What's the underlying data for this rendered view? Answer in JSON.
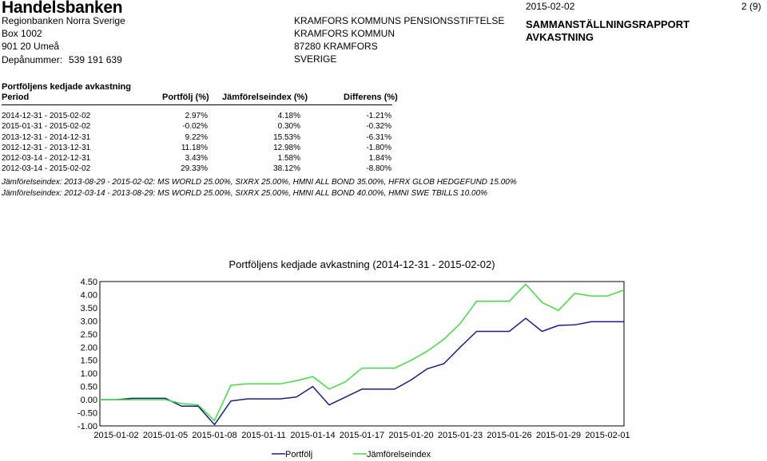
{
  "header": {
    "brand": "Handelsbanken",
    "sender_lines": [
      "Regionbanken Norra Sverige",
      "Box 1002",
      "901 20 Umeå"
    ],
    "depot_label": "Depånummer:",
    "depot_number": "539 191 639",
    "recipient_lines": [
      "KRAMFORS KOMMUNS PENSIONSSTIFTELSE",
      "KRAMFORS KOMMUN",
      "87280 KRAMFORS",
      "SVERIGE"
    ],
    "date": "2015-02-02",
    "page": "2 (9)",
    "report_title_1": "SAMMANSTÄLLNINGSRAPPORT",
    "report_title_2": "AVKASTNING"
  },
  "table": {
    "title": "Portföljens kedjade avkastning",
    "columns": [
      "Period",
      "Portfölj (%)",
      "Jämförelseindex (%)",
      "Differens (%)"
    ],
    "rows": [
      [
        "2014-12-31 - 2015-02-02",
        "2.97%",
        "4.18%",
        "-1.21%"
      ],
      [
        "2015-01-31 - 2015-02-02",
        "-0.02%",
        "0.30%",
        "-0.32%"
      ],
      [
        "2013-12-31 - 2014-12-31",
        "9.22%",
        "15.53%",
        "-6.31%"
      ],
      [
        "2012-12-31 - 2013-12-31",
        "11.18%",
        "12.98%",
        "-1.80%"
      ],
      [
        "2012-03-14 - 2012-12-31",
        "3.43%",
        "1.58%",
        "1.84%"
      ],
      [
        "2012-03-14 - 2015-02-02",
        "29.33%",
        "38.12%",
        "-8.80%"
      ]
    ]
  },
  "notes": [
    "Jämförelseindex: 2013-08-29 - 2015-02-02: MS WORLD 25.00%, SIXRX 25.00%, HMNI ALL BOND 35.00%, HFRX GLOB HEDGEFUND 15.00%",
    "Jämförelseindex: 2012-03-14 - 2013-08-29: MS WORLD 25.00%, SIXRX 25.00%, HMNI ALL BOND 40.00%, HMNI SWE TBILLS 10.00%"
  ],
  "chart_data": {
    "type": "line",
    "title": "Portföljens kedjade avkastning (2014-12-31 - 2015-02-02)",
    "ylim": [
      -1.0,
      4.5
    ],
    "yticks": [
      "4.50",
      "4.00",
      "3.50",
      "3.00",
      "2.50",
      "2.00",
      "1.50",
      "1.00",
      "0.50",
      "0.00",
      "-0.50",
      "-1.00"
    ],
    "x_tick_labels": [
      "2015-01-02",
      "2015-01-05",
      "2015-01-08",
      "2015-01-11",
      "2015-01-14",
      "2015-01-17",
      "2015-01-20",
      "2015-01-23",
      "2015-01-26",
      "2015-01-29",
      "2015-02-01"
    ],
    "x": [
      "2015-01-01",
      "2015-01-02",
      "2015-01-03",
      "2015-01-04",
      "2015-01-05",
      "2015-01-06",
      "2015-01-07",
      "2015-01-08",
      "2015-01-09",
      "2015-01-10",
      "2015-01-11",
      "2015-01-12",
      "2015-01-13",
      "2015-01-14",
      "2015-01-15",
      "2015-01-16",
      "2015-01-17",
      "2015-01-18",
      "2015-01-19",
      "2015-01-20",
      "2015-01-21",
      "2015-01-22",
      "2015-01-23",
      "2015-01-24",
      "2015-01-25",
      "2015-01-26",
      "2015-01-27",
      "2015-01-28",
      "2015-01-29",
      "2015-01-30",
      "2015-01-31",
      "2015-02-01",
      "2015-02-02"
    ],
    "series": [
      {
        "name": "Portfölj",
        "color": "#1c1c8c",
        "values": [
          0.0,
          0.0,
          0.05,
          0.05,
          0.05,
          -0.25,
          -0.25,
          -0.95,
          -0.05,
          0.03,
          0.03,
          0.03,
          0.1,
          0.5,
          -0.2,
          0.1,
          0.4,
          0.4,
          0.4,
          0.75,
          1.18,
          1.37,
          2.0,
          2.6,
          2.6,
          2.6,
          3.1,
          2.6,
          2.83,
          2.85,
          2.97,
          2.97,
          2.97
        ]
      },
      {
        "name": "Jämförelseindex",
        "color": "#3ee03e",
        "values": [
          0.0,
          0.0,
          0.0,
          0.0,
          0.0,
          -0.15,
          -0.2,
          -0.8,
          0.55,
          0.6,
          0.6,
          0.6,
          0.72,
          0.88,
          0.4,
          0.68,
          1.2,
          1.2,
          1.2,
          1.5,
          1.85,
          2.3,
          2.9,
          3.75,
          3.75,
          3.75,
          4.4,
          3.7,
          3.4,
          4.05,
          3.95,
          3.95,
          4.18
        ]
      }
    ],
    "legend": "bottom"
  }
}
